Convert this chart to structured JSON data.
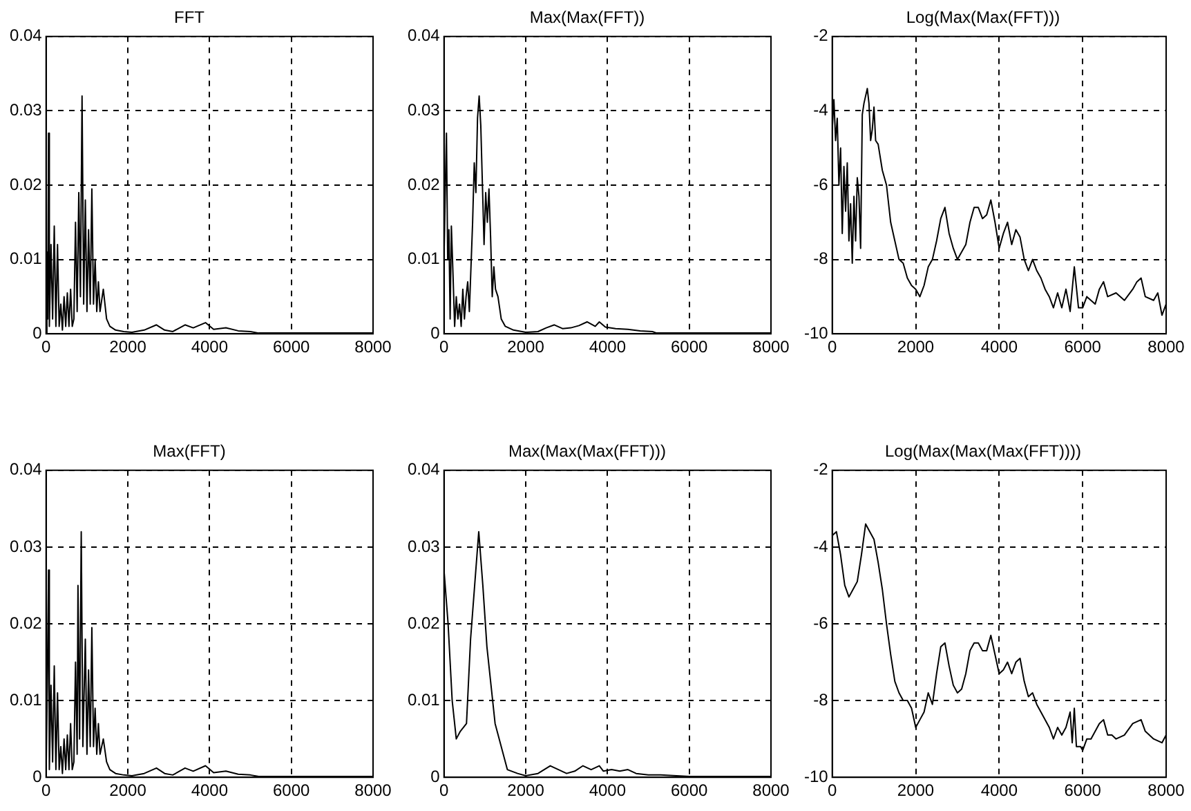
{
  "chart_data": [
    {
      "type": "line",
      "title": "FFT",
      "color": "#000000",
      "grid": true,
      "xlim": [
        0,
        8000
      ],
      "xticks": [
        0,
        2000,
        4000,
        6000,
        8000
      ],
      "ylim": [
        0,
        0.04
      ],
      "yticks": [
        0,
        0.01,
        0.02,
        0.03,
        0.04
      ],
      "x": [
        0,
        20,
        40,
        60,
        80,
        120,
        160,
        200,
        240,
        280,
        320,
        360,
        400,
        440,
        480,
        520,
        560,
        600,
        640,
        680,
        720,
        760,
        800,
        840,
        880,
        920,
        960,
        1000,
        1040,
        1080,
        1120,
        1160,
        1200,
        1240,
        1280,
        1320,
        1400,
        1480,
        1560,
        1700,
        1900,
        2100,
        2400,
        2700,
        2900,
        3100,
        3400,
        3600,
        3900,
        4100,
        4400,
        4700,
        5000,
        5200,
        6000,
        7000,
        8000
      ],
      "values": [
        0,
        0.011,
        0.002,
        0.027,
        0.001,
        0.012,
        0.002,
        0.0145,
        0.001,
        0.012,
        0.001,
        0.004,
        0.0005,
        0.005,
        0.001,
        0.0055,
        0.001,
        0.006,
        0.001,
        0.002,
        0.015,
        0.003,
        0.019,
        0.005,
        0.032,
        0.004,
        0.018,
        0.003,
        0.014,
        0.004,
        0.0195,
        0.004,
        0.01,
        0.003,
        0.007,
        0.003,
        0.006,
        0.002,
        0.001,
        0.0005,
        0.0003,
        0.0002,
        0.0005,
        0.0012,
        0.0005,
        0.0003,
        0.0012,
        0.0008,
        0.0015,
        0.0006,
        0.0008,
        0.0004,
        0.0003,
        0.0001,
        0.0001,
        0.0001,
        0.0001
      ]
    },
    {
      "type": "line",
      "title": "Max(Max(FFT))",
      "color": "#000000",
      "grid": true,
      "xlim": [
        0,
        8000
      ],
      "xticks": [
        0,
        2000,
        4000,
        6000,
        8000
      ],
      "ylim": [
        0,
        0.04
      ],
      "yticks": [
        0,
        0.01,
        0.02,
        0.03,
        0.04
      ],
      "x": [
        0,
        30,
        60,
        90,
        120,
        150,
        180,
        220,
        260,
        300,
        340,
        380,
        420,
        460,
        500,
        540,
        580,
        620,
        700,
        740,
        780,
        820,
        860,
        900,
        940,
        980,
        1020,
        1060,
        1100,
        1140,
        1180,
        1220,
        1260,
        1320,
        1400,
        1500,
        1700,
        2000,
        2300,
        2500,
        2700,
        2900,
        3100,
        3300,
        3500,
        3700,
        3800,
        3950,
        4200,
        4500,
        4800,
        5100,
        5200,
        6000,
        8000
      ],
      "values": [
        0.01,
        0.019,
        0.027,
        0.01,
        0.014,
        0.002,
        0.0145,
        0.008,
        0.001,
        0.005,
        0.002,
        0.004,
        0.001,
        0.006,
        0.002,
        0.005,
        0.007,
        0.003,
        0.015,
        0.023,
        0.019,
        0.029,
        0.032,
        0.028,
        0.02,
        0.012,
        0.019,
        0.015,
        0.0195,
        0.013,
        0.005,
        0.009,
        0.006,
        0.005,
        0.002,
        0.001,
        0.0005,
        0.0002,
        0.0003,
        0.0008,
        0.0012,
        0.0007,
        0.0008,
        0.0011,
        0.0016,
        0.001,
        0.0016,
        0.0009,
        0.0007,
        0.0006,
        0.0004,
        0.0003,
        0.0001,
        0.0001,
        0.0001
      ]
    },
    {
      "type": "line",
      "title": "Log(Max(Max(FFT)))",
      "color": "#000000",
      "grid": true,
      "xlim": [
        0,
        8000
      ],
      "xticks": [
        0,
        2000,
        4000,
        6000,
        8000
      ],
      "ylim": [
        -10,
        -2
      ],
      "yticks": [
        -10,
        -8,
        -6,
        -4,
        -2
      ],
      "x": [
        0,
        40,
        80,
        120,
        160,
        200,
        240,
        280,
        320,
        360,
        400,
        440,
        480,
        520,
        560,
        600,
        640,
        680,
        720,
        760,
        800,
        840,
        880,
        920,
        960,
        1000,
        1040,
        1100,
        1200,
        1300,
        1400,
        1500,
        1600,
        1700,
        1800,
        1900,
        2000,
        2100,
        2200,
        2300,
        2400,
        2500,
        2600,
        2700,
        2800,
        2900,
        3000,
        3100,
        3200,
        3300,
        3400,
        3500,
        3600,
        3700,
        3800,
        3900,
        4000,
        4100,
        4200,
        4300,
        4400,
        4500,
        4600,
        4700,
        4800,
        4900,
        5000,
        5100,
        5200,
        5300,
        5400,
        5500,
        5600,
        5700,
        5800,
        5900,
        6000,
        6100,
        6300,
        6400,
        6500,
        6600,
        6800,
        7000,
        7200,
        7300,
        7400,
        7500,
        7700,
        7800,
        7900,
        8000
      ],
      "values": [
        -4.5,
        -3.7,
        -4.8,
        -4.2,
        -6,
        -5,
        -7.3,
        -5.5,
        -6.7,
        -5.4,
        -7.5,
        -6.5,
        -8.1,
        -6.3,
        -7.5,
        -5.8,
        -6.3,
        -7.7,
        -4.1,
        -3.8,
        -3.6,
        -3.4,
        -3.8,
        -4.8,
        -4.5,
        -3.9,
        -4.8,
        -4.9,
        -5.6,
        -6,
        -7,
        -7.5,
        -8,
        -8.1,
        -8.5,
        -8.7,
        -8.8,
        -9,
        -8.7,
        -8.2,
        -8,
        -7.5,
        -6.9,
        -6.6,
        -7.3,
        -7.7,
        -8,
        -7.8,
        -7.6,
        -7,
        -6.6,
        -6.6,
        -6.9,
        -6.8,
        -6.4,
        -7,
        -7.7,
        -7.3,
        -7,
        -7.6,
        -7.2,
        -7.4,
        -8,
        -8.3,
        -8,
        -8.3,
        -8.5,
        -8.8,
        -9,
        -9.3,
        -8.9,
        -9.3,
        -8.8,
        -9.4,
        -8.2,
        -9.3,
        -9.3,
        -9,
        -9.2,
        -8.8,
        -8.6,
        -9,
        -8.9,
        -9.1,
        -8.8,
        -8.6,
        -8.5,
        -9,
        -9.1,
        -8.9,
        -9.5,
        -9.2
      ]
    },
    {
      "type": "line",
      "title": "Max(FFT)",
      "color": "#000000",
      "grid": true,
      "xlim": [
        0,
        8000
      ],
      "xticks": [
        0,
        2000,
        4000,
        6000,
        8000
      ],
      "ylim": [
        0,
        0.04
      ],
      "yticks": [
        0,
        0.01,
        0.02,
        0.03,
        0.04
      ],
      "x": [
        0,
        30,
        60,
        80,
        120,
        160,
        200,
        240,
        280,
        320,
        360,
        400,
        440,
        480,
        520,
        560,
        600,
        640,
        680,
        720,
        760,
        780,
        820,
        860,
        900,
        960,
        1000,
        1040,
        1080,
        1120,
        1160,
        1200,
        1240,
        1280,
        1320,
        1400,
        1480,
        1560,
        1700,
        1900,
        2100,
        2400,
        2700,
        2900,
        3100,
        3400,
        3600,
        3900,
        4100,
        4400,
        4700,
        5000,
        5200,
        6000,
        7000,
        8000
      ],
      "values": [
        0,
        0.012,
        0.027,
        0.001,
        0.012,
        0.002,
        0.0145,
        0.001,
        0.011,
        0.001,
        0.004,
        0.0005,
        0.005,
        0.001,
        0.0055,
        0.001,
        0.007,
        0.001,
        0.002,
        0.015,
        0.003,
        0.025,
        0.005,
        0.032,
        0.004,
        0.018,
        0.003,
        0.014,
        0.004,
        0.0195,
        0.004,
        0.009,
        0.003,
        0.007,
        0.003,
        0.005,
        0.002,
        0.001,
        0.0005,
        0.0003,
        0.0002,
        0.0005,
        0.0012,
        0.0005,
        0.0003,
        0.0012,
        0.0008,
        0.0015,
        0.0006,
        0.0008,
        0.0004,
        0.0003,
        0.0001,
        0.0001,
        0.0001,
        0.0001
      ]
    },
    {
      "type": "line",
      "title": "Max(Max(Max(FFT)))",
      "color": "#000000",
      "grid": true,
      "xlim": [
        0,
        8000
      ],
      "xticks": [
        0,
        2000,
        4000,
        6000,
        8000
      ],
      "ylim": [
        0,
        0.04
      ],
      "yticks": [
        0,
        0.01,
        0.02,
        0.03,
        0.04
      ],
      "x": [
        0,
        100,
        200,
        300,
        400,
        550,
        650,
        750,
        850,
        950,
        1050,
        1150,
        1250,
        1400,
        1550,
        1800,
        2000,
        2300,
        2600,
        2800,
        3000,
        3200,
        3400,
        3600,
        3800,
        3900,
        4100,
        4300,
        4500,
        4700,
        5000,
        5300,
        6000,
        7000,
        8000
      ],
      "values": [
        0.027,
        0.02,
        0.01,
        0.005,
        0.006,
        0.007,
        0.018,
        0.025,
        0.032,
        0.025,
        0.017,
        0.012,
        0.007,
        0.004,
        0.001,
        0.0005,
        0.0002,
        0.0005,
        0.0015,
        0.001,
        0.0005,
        0.0008,
        0.0015,
        0.001,
        0.0015,
        0.0008,
        0.001,
        0.0008,
        0.001,
        0.0005,
        0.0003,
        0.0003,
        0.0001,
        0.0001,
        0.0001
      ]
    },
    {
      "type": "line",
      "title": "Log(Max(Max(Max(FFT))))",
      "color": "#000000",
      "grid": true,
      "xlim": [
        0,
        8000
      ],
      "xticks": [
        0,
        2000,
        4000,
        6000,
        8000
      ],
      "ylim": [
        -10,
        -2
      ],
      "yticks": [
        -10,
        -8,
        -6,
        -4,
        -2
      ],
      "x": [
        0,
        100,
        200,
        300,
        400,
        500,
        600,
        700,
        800,
        900,
        1000,
        1100,
        1200,
        1300,
        1400,
        1500,
        1600,
        1700,
        1800,
        1900,
        2000,
        2100,
        2200,
        2300,
        2400,
        2500,
        2600,
        2700,
        2800,
        2900,
        3000,
        3100,
        3200,
        3300,
        3400,
        3500,
        3600,
        3700,
        3800,
        3900,
        4000,
        4100,
        4200,
        4300,
        4400,
        4500,
        4600,
        4700,
        4800,
        4900,
        5000,
        5200,
        5300,
        5400,
        5500,
        5600,
        5700,
        5750,
        5800,
        5850,
        5950,
        6000,
        6100,
        6200,
        6400,
        6500,
        6600,
        6700,
        6800,
        7000,
        7200,
        7400,
        7500,
        7700,
        7900,
        8000
      ],
      "values": [
        -3.7,
        -3.6,
        -4.2,
        -5,
        -5.3,
        -5.1,
        -4.9,
        -4.2,
        -3.4,
        -3.6,
        -3.8,
        -4.4,
        -5.1,
        -6,
        -6.8,
        -7.5,
        -7.8,
        -8,
        -8,
        -8.2,
        -8.7,
        -8.5,
        -8.3,
        -7.8,
        -8.1,
        -7.3,
        -6.6,
        -6.5,
        -7.1,
        -7.6,
        -7.8,
        -7.7,
        -7.3,
        -6.7,
        -6.5,
        -6.5,
        -6.7,
        -6.7,
        -6.3,
        -6.8,
        -7.3,
        -7.2,
        -7,
        -7.3,
        -7,
        -6.9,
        -7.5,
        -7.9,
        -7.8,
        -8.1,
        -8.3,
        -8.7,
        -9,
        -8.7,
        -8.9,
        -8.7,
        -8.3,
        -9.1,
        -8.2,
        -9.2,
        -9.2,
        -9.3,
        -9,
        -9,
        -8.6,
        -8.5,
        -8.9,
        -8.9,
        -9,
        -8.9,
        -8.6,
        -8.5,
        -8.8,
        -9,
        -9.1,
        -8.9
      ]
    }
  ]
}
